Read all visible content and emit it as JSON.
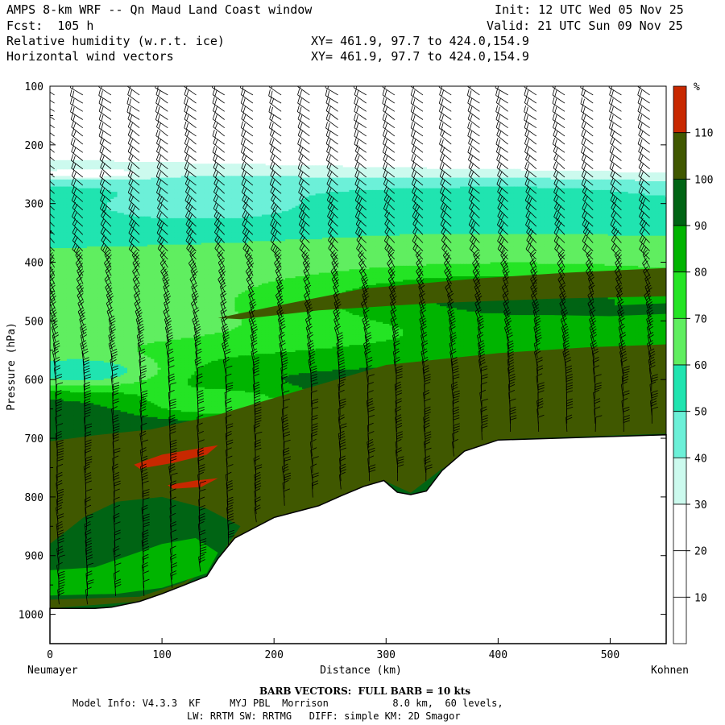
{
  "header": {
    "title": "AMPS 8-km WRF -- Qn Maud Land Coast window",
    "fcst": "Fcst:  105 h",
    "field1": "Relative humidity (w.r.t. ice)",
    "field2": "Horizontal wind vectors",
    "xy1": "XY= 461.9, 97.7 to 424.0,154.9",
    "xy2": "XY= 461.9, 97.7 to 424.0,154.9",
    "init": "Init: 12 UTC Wed 05 Nov 25",
    "valid": "Valid: 21 UTC Sun 09 Nov 25"
  },
  "footer": {
    "barb": "BARB VECTORS:  FULL BARB = 10 kts",
    "model_info": "Model Info: V4.3.3  KF     MYJ PBL  Morrison           8.0 km,  60 levels,",
    "physics": "LW: RRTM SW: RRTMG   DIFF: simple KM: 2D Smagor"
  },
  "chart_data": {
    "type": "heatmap",
    "title": "Relative humidity (w.r.t. ice) cross-section with horizontal wind vectors",
    "xlabel": "Distance (km)",
    "ylabel": "Pressure (hPa)",
    "xlim": [
      0,
      550
    ],
    "ylim": [
      1050,
      100
    ],
    "x_ticks": [
      0,
      100,
      200,
      300,
      400,
      500
    ],
    "y_ticks": [
      100,
      200,
      300,
      400,
      500,
      600,
      700,
      800,
      900,
      1000
    ],
    "x_endpoints": {
      "left": "Neumayer",
      "right": "Kohnen"
    },
    "colorbar": {
      "unit": "%",
      "levels": [
        10,
        20,
        30,
        40,
        50,
        60,
        70,
        80,
        90,
        100,
        110
      ],
      "colors": [
        "#ffffff",
        "#ffffff",
        "#ffffff",
        "#ccfaee",
        "#6cf0d8",
        "#20e4b0",
        "#60ee60",
        "#24e424",
        "#00b400",
        "#006414",
        "#405800",
        "#c82800"
      ]
    },
    "terrain_surface_hpa": [
      [
        0,
        990
      ],
      [
        40,
        990
      ],
      [
        55,
        988
      ],
      [
        80,
        978
      ],
      [
        100,
        965
      ],
      [
        120,
        950
      ],
      [
        140,
        935
      ],
      [
        150,
        905
      ],
      [
        165,
        870
      ],
      [
        180,
        855
      ],
      [
        200,
        835
      ],
      [
        220,
        825
      ],
      [
        240,
        815
      ],
      [
        260,
        798
      ],
      [
        280,
        782
      ],
      [
        298,
        772
      ],
      [
        310,
        792
      ],
      [
        322,
        796
      ],
      [
        336,
        790
      ],
      [
        350,
        755
      ],
      [
        370,
        722
      ],
      [
        400,
        703
      ],
      [
        450,
        700
      ],
      [
        500,
        697
      ],
      [
        550,
        694
      ]
    ],
    "regions": [
      {
        "rh": 105,
        "pts": [
          [
            0,
            705
          ],
          [
            40,
            695
          ],
          [
            90,
            685
          ],
          [
            150,
            660
          ],
          [
            220,
            620
          ],
          [
            300,
            575
          ],
          [
            400,
            555
          ],
          [
            480,
            545
          ],
          [
            550,
            540
          ],
          [
            550,
            692
          ],
          [
            400,
            702
          ],
          [
            350,
            752
          ],
          [
            322,
            793
          ],
          [
            298,
            772
          ],
          [
            240,
            815
          ],
          [
            180,
            855
          ],
          [
            150,
            905
          ],
          [
            120,
            950
          ],
          [
            80,
            978
          ],
          [
            0,
            990
          ]
        ]
      },
      {
        "rh": 105,
        "pts": [
          [
            150,
            495
          ],
          [
            200,
            475
          ],
          [
            280,
            445
          ],
          [
            380,
            428
          ],
          [
            460,
            418
          ],
          [
            550,
            410
          ],
          [
            550,
            458
          ],
          [
            450,
            462
          ],
          [
            340,
            470
          ],
          [
            240,
            482
          ],
          [
            170,
            497
          ]
        ]
      },
      {
        "rh": 95,
        "pts": [
          [
            0,
            880
          ],
          [
            30,
            835
          ],
          [
            60,
            808
          ],
          [
            100,
            800
          ],
          [
            140,
            820
          ],
          [
            170,
            850
          ],
          [
            150,
            905
          ],
          [
            120,
            945
          ],
          [
            80,
            970
          ],
          [
            0,
            975
          ]
        ]
      },
      {
        "rh": 95,
        "pts": [
          [
            450,
            478
          ],
          [
            500,
            474
          ],
          [
            550,
            470
          ],
          [
            550,
            488
          ],
          [
            500,
            492
          ],
          [
            450,
            490
          ]
        ]
      },
      {
        "rh": 85,
        "pts": [
          [
            0,
            925
          ],
          [
            40,
            920
          ],
          [
            70,
            900
          ],
          [
            100,
            880
          ],
          [
            130,
            870
          ],
          [
            150,
            895
          ],
          [
            140,
            930
          ],
          [
            100,
            955
          ],
          [
            60,
            965
          ],
          [
            0,
            968
          ]
        ]
      },
      {
        "rh": 115,
        "pts": [
          [
            75,
            745
          ],
          [
            100,
            728
          ],
          [
            130,
            718
          ],
          [
            150,
            712
          ],
          [
            140,
            728
          ],
          [
            110,
            742
          ],
          [
            80,
            752
          ]
        ]
      },
      {
        "rh": 115,
        "pts": [
          [
            105,
            780
          ],
          [
            130,
            772
          ],
          [
            150,
            768
          ],
          [
            135,
            783
          ],
          [
            110,
            786
          ]
        ]
      }
    ],
    "wind_barbs": "spd_kts_range_5_to_35"
  }
}
